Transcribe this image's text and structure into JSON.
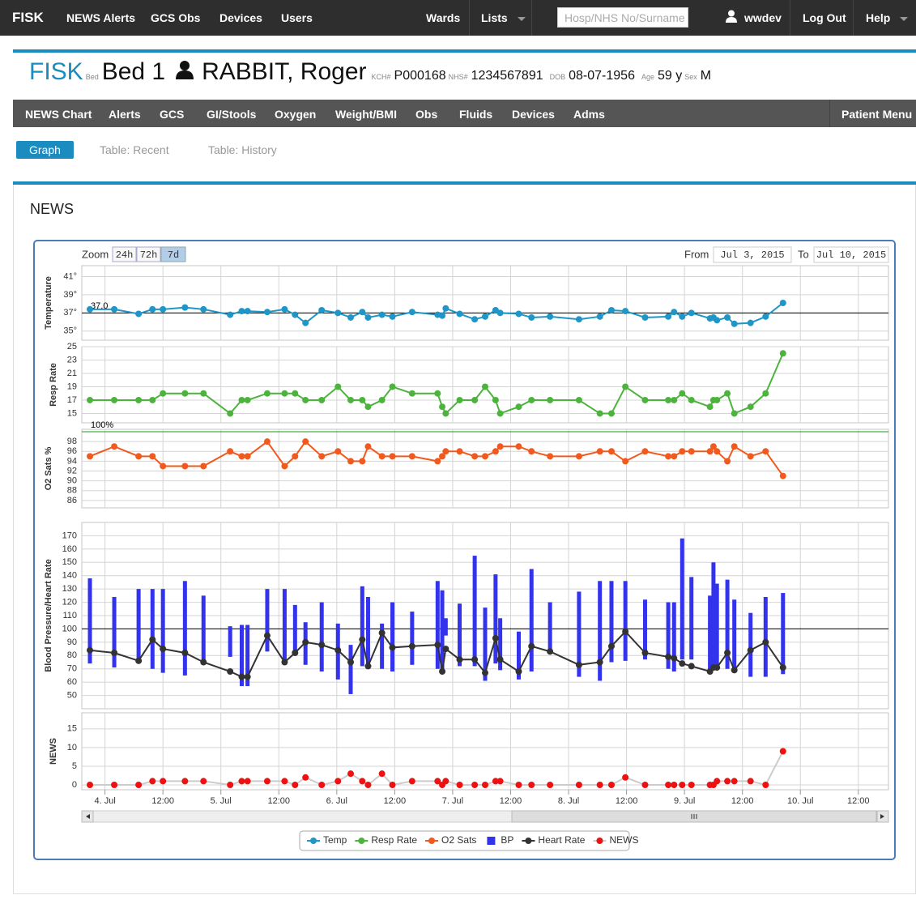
{
  "navbar": {
    "brand": "FISK",
    "links": [
      "NEWS Alerts",
      "GCS Obs",
      "Devices",
      "Users"
    ],
    "right_links": [
      "Wards",
      "Lists"
    ],
    "search_placeholder": "Hosp/NHS No/Surname",
    "user": "wwdev",
    "logout": "Log Out",
    "help": "Help"
  },
  "patient": {
    "ward": "FISK",
    "bed_label": "Bed",
    "bed": "Bed 1",
    "name": "RABBIT, Roger",
    "fields": [
      {
        "label": "KCH#",
        "value": "P000168"
      },
      {
        "label": "NHS#",
        "value": "1234567891"
      },
      {
        "label": "DOB",
        "value": "08-07-1956"
      },
      {
        "label": "Age",
        "value": "59 y"
      },
      {
        "label": "Sex",
        "value": "M"
      }
    ]
  },
  "patient_nav": {
    "items": [
      "NEWS Chart",
      "Alerts",
      "GCS",
      "GI/Stools",
      "Oxygen",
      "Weight/BMI",
      "Obs",
      "Fluids",
      "Devices",
      "Adms"
    ],
    "menu": "Patient Menu"
  },
  "tabs": [
    "Graph",
    "Table: Recent",
    "Table: History"
  ],
  "panel_title": "NEWS",
  "controls": {
    "zoom_label": "Zoom",
    "zoom": [
      "24h",
      "72h",
      "7d"
    ],
    "from_label": "From",
    "from": "Jul 3, 2015",
    "to_label": "To",
    "to": "Jul 10, 2015"
  },
  "chart_data": {
    "type": "line",
    "legend": "bottom",
    "x": [
      -0.13,
      0.08,
      0.29,
      0.41,
      0.5,
      0.69,
      0.85,
      1.08,
      1.18,
      1.23,
      1.4,
      1.55,
      1.64,
      1.73,
      1.87,
      2.01,
      2.12,
      2.22,
      2.27,
      2.39,
      2.48,
      2.65,
      2.87,
      2.91,
      2.94,
      3.06,
      3.19,
      3.28,
      3.37,
      3.41,
      3.57,
      3.68,
      3.84,
      4.09,
      4.27,
      4.37,
      4.49,
      4.66,
      4.86,
      4.91,
      4.98,
      5.06,
      5.22,
      5.25,
      5.28,
      5.37,
      5.43,
      5.57,
      5.7,
      5.85
    ],
    "xlim": [
      -0.2,
      6.76
    ],
    "xticks": [
      {
        "value": 0,
        "label": "4. Jul"
      },
      {
        "value": 0.5,
        "label": "12:00"
      },
      {
        "value": 1,
        "label": "5. Jul"
      },
      {
        "value": 1.5,
        "label": "12:00"
      },
      {
        "value": 2,
        "label": "6. Jul"
      },
      {
        "value": 2.5,
        "label": "12:00"
      },
      {
        "value": 3,
        "label": "7. Jul"
      },
      {
        "value": 3.5,
        "label": "12:00"
      },
      {
        "value": 4,
        "label": "8. Jul"
      },
      {
        "value": 4.5,
        "label": "12:00"
      },
      {
        "value": 5,
        "label": "9. Jul"
      },
      {
        "value": 5.5,
        "label": "12:00"
      },
      {
        "value": 6,
        "label": "10. Jul"
      },
      {
        "value": 6.5,
        "label": "12:00"
      }
    ],
    "panels": [
      {
        "ylabel": "Temperature",
        "ylim": [
          34.0,
          42.2
        ],
        "grid": true,
        "yticks": [
          {
            "value": 35,
            "label": "35°"
          },
          {
            "value": 37,
            "label": "37°"
          },
          {
            "value": 39,
            "label": "39°"
          },
          {
            "value": 41,
            "label": "41°"
          }
        ],
        "reference": {
          "value": 37,
          "label": "37.0",
          "color": "#000000"
        },
        "series": [
          {
            "name": "Temp",
            "color": "#1f96c8",
            "values": [
              37.4,
              37.4,
              36.9,
              37.4,
              37.4,
              37.6,
              37.4,
              36.8,
              37.2,
              37.2,
              37.1,
              37.4,
              36.8,
              35.9,
              37.3,
              37.0,
              36.5,
              37.1,
              36.5,
              36.8,
              36.6,
              37.1,
              36.8,
              36.7,
              37.5,
              36.9,
              36.3,
              36.6,
              37.3,
              37.0,
              36.9,
              36.5,
              36.6,
              36.3,
              36.6,
              37.3,
              37.2,
              36.5,
              36.6,
              37.1,
              36.6,
              37.0,
              36.4,
              36.5,
              36.2,
              36.5,
              35.8,
              35.9,
              36.6,
              38.1
            ]
          }
        ]
      },
      {
        "ylabel": "Resp Rate",
        "ylim": [
          13.6,
          25
        ],
        "grid": true,
        "yticks": [
          15,
          17,
          19,
          21,
          23,
          25
        ],
        "series": [
          {
            "name": "Resp Rate",
            "color": "#4cb43c",
            "values": [
              17,
              17,
              17,
              17,
              18,
              18,
              18,
              15,
              17,
              17,
              18,
              18,
              18,
              17,
              17,
              19,
              17,
              17,
              16,
              17,
              19,
              18,
              18,
              16,
              15,
              17,
              17,
              19,
              17,
              15,
              16,
              17,
              17,
              17,
              15,
              15,
              19,
              17,
              17,
              17,
              18,
              17,
              16,
              17,
              17,
              18,
              15,
              16,
              18,
              24
            ]
          }
        ]
      },
      {
        "ylabel": "O2 Sats %",
        "ylim": [
          84.5,
          100.5
        ],
        "grid": true,
        "yticks": [
          86,
          88,
          90,
          92,
          94,
          96,
          98
        ],
        "reference": {
          "value": 100,
          "label": "100%",
          "color": "#1a9a1a"
        },
        "series": [
          {
            "name": "O2 Sats",
            "color": "#f05a1e",
            "values": [
              95,
              97,
              95,
              95,
              93,
              93,
              93,
              96,
              95,
              95,
              98,
              93,
              95,
              98,
              95,
              96,
              94,
              94,
              97,
              95,
              95,
              95,
              94,
              95,
              96,
              96,
              95,
              95,
              96,
              97,
              97,
              96,
              95,
              95,
              96,
              96,
              94,
              96,
              95,
              95,
              96,
              96,
              96,
              97,
              96,
              94,
              97,
              95,
              96,
              91
            ]
          }
        ]
      },
      {
        "ylabel": "Blood Pressure/Heart Rate",
        "ylim": [
          40,
          180
        ],
        "grid": true,
        "yticks": [
          50,
          60,
          70,
          80,
          90,
          100,
          110,
          120,
          130,
          140,
          150,
          160,
          170
        ],
        "reference": {
          "value": 100,
          "color": "#000000"
        },
        "series": [
          {
            "name": "BP",
            "type": "range",
            "color": "#3333ee",
            "high": [
              138,
              124,
              130,
              130,
              130,
              136,
              125,
              102,
              103,
              103,
              130,
              130,
              118,
              105,
              120,
              104,
              88,
              132,
              124,
              104,
              120,
              113,
              136,
              129,
              108,
              119,
              155,
              116,
              141,
              108,
              98,
              145,
              120,
              128,
              136,
              136,
              136,
              122,
              120,
              120,
              168,
              139,
              125,
              150,
              134,
              137,
              122,
              112,
              124,
              127
            ],
            "low": [
              74,
              71,
              76,
              70,
              67,
              65,
              76,
              79,
              57,
              57,
              83,
              73,
              82,
              73,
              68,
              62,
              51,
              72,
              70,
              70,
              68,
              73,
              70,
              68,
              95,
              72,
              72,
              61,
              74,
              69,
              62,
              68,
              83,
              64,
              61,
              75,
              76,
              77,
              70,
              68,
              77,
              77,
              69,
              70,
              73,
              70,
              68,
              64,
              64,
              66
            ]
          },
          {
            "name": "Heart Rate",
            "color": "#333333",
            "values": [
              84,
              82,
              76,
              92,
              85,
              82,
              75,
              68,
              64,
              64,
              95,
              75,
              82,
              90,
              88,
              84,
              75,
              92,
              72,
              97,
              86,
              87,
              88,
              68,
              85,
              77,
              77,
              67,
              93,
              77,
              68,
              87,
              83,
              73,
              75,
              87,
              98,
              82,
              79,
              78,
              74,
              72,
              68,
              71,
              71,
              82,
              69,
              84,
              90,
              71
            ]
          }
        ]
      },
      {
        "ylabel": "NEWS",
        "ylim": [
          -1.3,
          19.3
        ],
        "grid": true,
        "yticks": [
          0,
          5,
          10,
          15
        ],
        "series": [
          {
            "name": "NEWS",
            "color": "#ee1111",
            "line_color": "#cccccc",
            "values": [
              0,
              0,
              0,
              1,
              1,
              1,
              1,
              0,
              1,
              1,
              1,
              1,
              0,
              2,
              0,
              1,
              3,
              1,
              0,
              3,
              0,
              1,
              1,
              0,
              1,
              0,
              0,
              0,
              1,
              1,
              0,
              0,
              0,
              0,
              0,
              0,
              2,
              0,
              0,
              0,
              0,
              0,
              0,
              0,
              1,
              1,
              1,
              1,
              0,
              9
            ]
          }
        ]
      }
    ]
  }
}
